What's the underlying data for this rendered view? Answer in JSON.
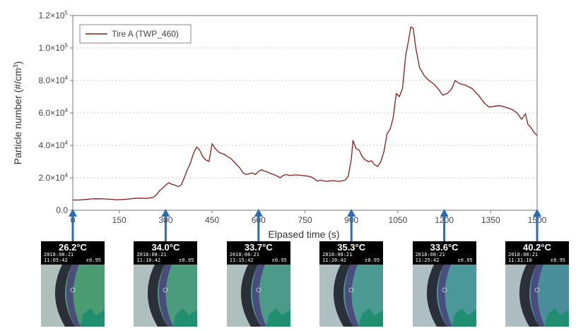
{
  "chart_data": {
    "type": "line",
    "xlabel": "Elpased time (s)",
    "ylabel_main": "Particle number (#/cm",
    "ylabel_sup": "3",
    "ylabel_end": ")",
    "xlim": [
      0,
      1500
    ],
    "ylim": [
      0,
      120000
    ],
    "grid": "horizontal dotted",
    "legend_position": "top-left",
    "x_ticks": [
      0,
      150,
      300,
      450,
      600,
      750,
      900,
      1050,
      1200,
      1350,
      1500
    ],
    "y_ticks": [
      {
        "value": 0,
        "label": "0.0"
      },
      {
        "value": 20000,
        "mantissa": "2.0",
        "exp": "4"
      },
      {
        "value": 40000,
        "mantissa": "4.0",
        "exp": "4"
      },
      {
        "value": 60000,
        "mantissa": "6.0",
        "exp": "4"
      },
      {
        "value": 80000,
        "mantissa": "8.0",
        "exp": "4"
      },
      {
        "value": 100000,
        "mantissa": "1.0",
        "exp": "5"
      },
      {
        "value": 120000,
        "mantissa": "1.2",
        "exp": "5"
      }
    ],
    "series": [
      {
        "name": "Tire A (TWP_460)",
        "color": "#8b1a1a",
        "points": [
          [
            0,
            6300
          ],
          [
            20,
            6300
          ],
          [
            40,
            6600
          ],
          [
            60,
            7000
          ],
          [
            80,
            7100
          ],
          [
            100,
            7000
          ],
          [
            120,
            6800
          ],
          [
            140,
            6500
          ],
          [
            160,
            6600
          ],
          [
            180,
            6900
          ],
          [
            200,
            7300
          ],
          [
            220,
            7500
          ],
          [
            240,
            7300
          ],
          [
            260,
            8000
          ],
          [
            270,
            9500
          ],
          [
            280,
            12000
          ],
          [
            290,
            13500
          ],
          [
            300,
            15500
          ],
          [
            310,
            17000
          ],
          [
            320,
            16000
          ],
          [
            330,
            15500
          ],
          [
            340,
            14500
          ],
          [
            350,
            15500
          ],
          [
            360,
            20000
          ],
          [
            370,
            25000
          ],
          [
            380,
            29000
          ],
          [
            390,
            35000
          ],
          [
            400,
            39000
          ],
          [
            410,
            37000
          ],
          [
            420,
            33000
          ],
          [
            430,
            31000
          ],
          [
            440,
            30000
          ],
          [
            450,
            41000
          ],
          [
            460,
            38000
          ],
          [
            470,
            36000
          ],
          [
            480,
            35000
          ],
          [
            490,
            34500
          ],
          [
            500,
            33000
          ],
          [
            510,
            32000
          ],
          [
            520,
            30000
          ],
          [
            530,
            28000
          ],
          [
            540,
            26000
          ],
          [
            550,
            23000
          ],
          [
            560,
            22000
          ],
          [
            570,
            22500
          ],
          [
            580,
            23000
          ],
          [
            590,
            22000
          ],
          [
            600,
            24000
          ],
          [
            610,
            25000
          ],
          [
            620,
            24000
          ],
          [
            630,
            23500
          ],
          [
            640,
            22500
          ],
          [
            650,
            22000
          ],
          [
            660,
            21000
          ],
          [
            670,
            20000
          ],
          [
            680,
            21500
          ],
          [
            690,
            22000
          ],
          [
            700,
            21500
          ],
          [
            720,
            21800
          ],
          [
            740,
            21500
          ],
          [
            760,
            21000
          ],
          [
            770,
            20500
          ],
          [
            780,
            19500
          ],
          [
            790,
            18000
          ],
          [
            800,
            18500
          ],
          [
            820,
            17800
          ],
          [
            840,
            18300
          ],
          [
            860,
            17800
          ],
          [
            880,
            18500
          ],
          [
            890,
            21000
          ],
          [
            900,
            32000
          ],
          [
            905,
            43000
          ],
          [
            915,
            38000
          ],
          [
            925,
            37000
          ],
          [
            935,
            33000
          ],
          [
            945,
            31000
          ],
          [
            955,
            30000
          ],
          [
            965,
            30500
          ],
          [
            975,
            28000
          ],
          [
            985,
            27000
          ],
          [
            995,
            30000
          ],
          [
            1005,
            36000
          ],
          [
            1015,
            47000
          ],
          [
            1025,
            50000
          ],
          [
            1035,
            57000
          ],
          [
            1045,
            72000
          ],
          [
            1055,
            70000
          ],
          [
            1065,
            75000
          ],
          [
            1075,
            95000
          ],
          [
            1085,
            105000
          ],
          [
            1092,
            113000
          ],
          [
            1100,
            112000
          ],
          [
            1108,
            100000
          ],
          [
            1120,
            88000
          ],
          [
            1135,
            83000
          ],
          [
            1150,
            80000
          ],
          [
            1165,
            78000
          ],
          [
            1180,
            75000
          ],
          [
            1195,
            71000
          ],
          [
            1210,
            72000
          ],
          [
            1225,
            75000
          ],
          [
            1235,
            80000
          ],
          [
            1250,
            78000
          ],
          [
            1270,
            77000
          ],
          [
            1290,
            75000
          ],
          [
            1310,
            71000
          ],
          [
            1330,
            66000
          ],
          [
            1345,
            63500
          ],
          [
            1360,
            64000
          ],
          [
            1375,
            64500
          ],
          [
            1390,
            64000
          ],
          [
            1405,
            63000
          ],
          [
            1420,
            62000
          ],
          [
            1435,
            60000
          ],
          [
            1450,
            56000
          ],
          [
            1462,
            59500
          ],
          [
            1470,
            53000
          ],
          [
            1480,
            51000
          ],
          [
            1490,
            48000
          ],
          [
            1500,
            46000
          ]
        ]
      }
    ],
    "markers_x": [
      0,
      300,
      600,
      900,
      1200,
      1500
    ],
    "marker_color": "#2b6cb0"
  },
  "thermal_images": [
    {
      "temp": "26.2°C",
      "date": "2018:08:21",
      "time": "11:05:42",
      "emissivity": "ε0.95"
    },
    {
      "temp": "34.0°C",
      "date": "2018:08:21",
      "time": "11:10:42",
      "emissivity": "ε0.95"
    },
    {
      "temp": "33.7°C",
      "date": "2018:08:21",
      "time": "11:15:42",
      "emissivity": "ε0.95"
    },
    {
      "temp": "35.3°C",
      "date": "2018:08:21",
      "time": "11:20:42",
      "emissivity": "ε0.95"
    },
    {
      "temp": "33.6°C",
      "date": "2018:08:21",
      "time": "11:25:42",
      "emissivity": "ε0.95"
    },
    {
      "temp": "40.2°C",
      "date": "2018:08:21",
      "time": "11:31:10",
      "emissivity": "ε0.95"
    }
  ]
}
